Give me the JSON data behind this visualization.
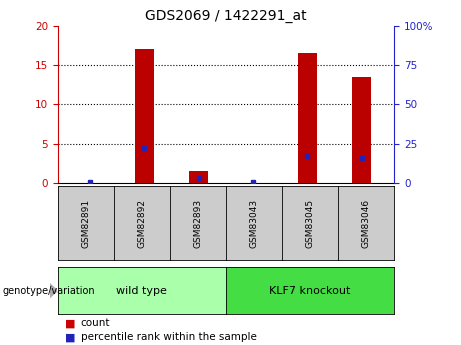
{
  "title": "GDS2069 / 1422291_at",
  "samples": [
    "GSM82891",
    "GSM82892",
    "GSM82893",
    "GSM83043",
    "GSM83045",
    "GSM83046"
  ],
  "counts": [
    0,
    17,
    1.5,
    0,
    16.5,
    13.5
  ],
  "percentile_ranks": [
    0.5,
    22,
    3,
    0.5,
    17,
    16
  ],
  "groups": [
    {
      "label": "wild type",
      "color": "#aaffaa",
      "size": 3
    },
    {
      "label": "KLF7 knockout",
      "color": "#44dd44",
      "size": 3
    }
  ],
  "ylim_left": [
    0,
    20
  ],
  "ylim_right": [
    0,
    100
  ],
  "yticks_left": [
    0,
    5,
    10,
    15,
    20
  ],
  "yticks_right": [
    0,
    25,
    50,
    75,
    100
  ],
  "left_axis_color": "#cc0000",
  "right_axis_color": "#2222cc",
  "bar_color": "#bb0000",
  "dot_color": "#2222bb",
  "sample_box_color": "#cccccc",
  "bg_color": "#ffffff",
  "genotype_label": "genotype/variation",
  "legend_count_color": "#cc0000",
  "legend_pct_color": "#2222bb",
  "bar_width": 0.35
}
